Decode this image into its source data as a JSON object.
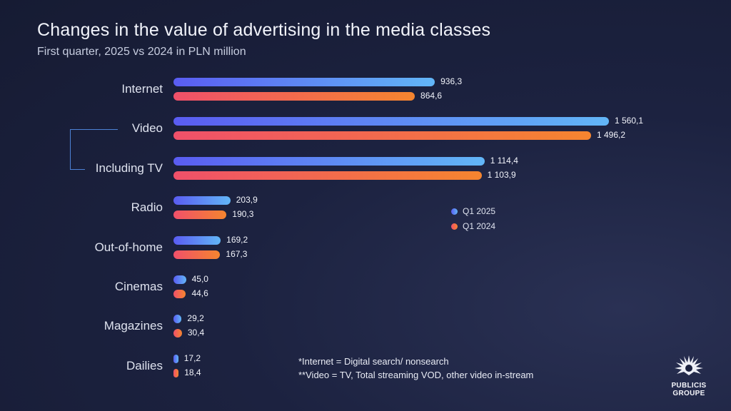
{
  "chart_data": {
    "type": "bar",
    "orientation": "horizontal",
    "title": "Changes in the value of advertising in the media classes",
    "subtitle": "First quarter, 2025 vs 2024 in PLN million",
    "categories": [
      "Internet",
      "Video",
      "Including TV",
      "Radio",
      "Out-of-home",
      "Cinemas",
      "Magazines",
      "Dailies"
    ],
    "series": [
      {
        "name": "Q1 2025",
        "values": [
          936.3,
          1560.1,
          1114.4,
          203.9,
          169.2,
          45.0,
          29.2,
          17.2
        ],
        "labels": [
          "936,3",
          "1 560,1",
          "1 114,4",
          "203,9",
          "169,2",
          "45,0",
          "29,2",
          "17,2"
        ]
      },
      {
        "name": "Q1 2024",
        "values": [
          864.6,
          1496.2,
          1103.9,
          190.3,
          167.3,
          44.6,
          30.4,
          18.4
        ],
        "labels": [
          "864,6",
          "1 496,2",
          "1 103,9",
          "190,3",
          "167,3",
          "44,6",
          "30,4",
          "18,4"
        ]
      }
    ],
    "legend_position": "center-right",
    "grid": false,
    "colors": {
      "q1_2025": [
        "#5a5cf2",
        "#62b6f7"
      ],
      "q1_2024": [
        "#f0506a",
        "#f5852f"
      ]
    }
  },
  "notes": [
    "*Internet = Digital search/ nonsearch",
    "**Video = TV, Total streaming VOD, other video in-stream"
  ],
  "logo": {
    "line1": "PUBLICIS",
    "line2": "GROUPE",
    "icon": "lion-mane-icon"
  }
}
